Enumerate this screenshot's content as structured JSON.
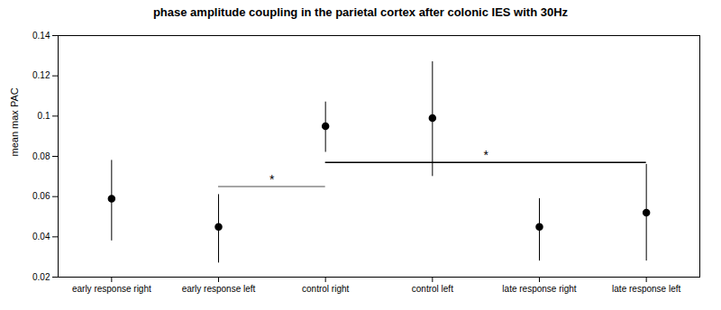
{
  "chart_data": {
    "type": "errorbar",
    "title": "phase amplitude coupling in the parietal cortex after colonic IES with 30Hz",
    "ylabel": "mean max PAC",
    "categories": [
      "early response right",
      "early response left",
      "control right",
      "control left",
      "late response right",
      "late response left"
    ],
    "values": [
      0.059,
      0.045,
      0.095,
      0.099,
      0.045,
      0.052
    ],
    "ci_lower": [
      0.038,
      0.027,
      0.082,
      0.07,
      0.028,
      0.028
    ],
    "ci_upper": [
      0.078,
      0.061,
      0.107,
      0.127,
      0.059,
      0.076
    ],
    "color": "#000000",
    "ylim": [
      0.02,
      0.14
    ],
    "yticks": [
      0.02,
      0.04,
      0.06,
      0.08,
      0.1,
      0.12,
      0.14
    ],
    "grid": false,
    "annotations": [
      {
        "text": "*",
        "x_start": "early response left",
        "x_end": "control right",
        "y": 0.065,
        "text_y": 0.0665,
        "color": "#888888"
      },
      {
        "text": "*",
        "x_start": "control right",
        "x_end": "late response left",
        "y": 0.077,
        "text_y": 0.0785,
        "color": "#000000"
      }
    ]
  }
}
